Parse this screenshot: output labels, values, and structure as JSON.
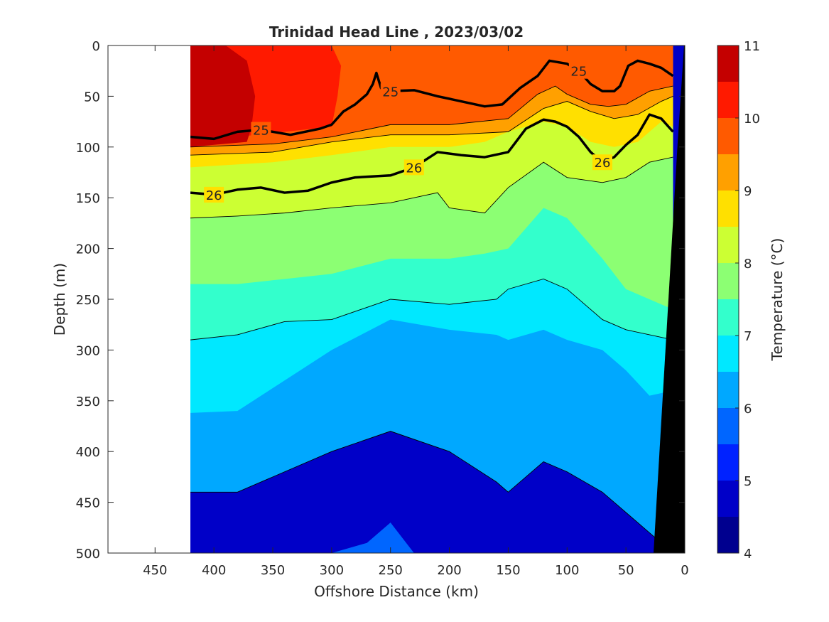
{
  "chart_data": {
    "type": "heatmap",
    "title": "Trinidad Head Line , 2023/03/02",
    "xlabel": "Offshore Distance (km)",
    "ylabel": "Depth (m)",
    "xlim": [
      490,
      0
    ],
    "ylim": [
      0,
      500
    ],
    "x_reversed": true,
    "y_reversed": true,
    "x_ticks": [
      450,
      400,
      350,
      300,
      250,
      200,
      150,
      100,
      50,
      0
    ],
    "y_ticks": [
      0,
      50,
      100,
      150,
      200,
      250,
      300,
      350,
      400,
      450,
      500
    ],
    "data_extent_km": [
      420,
      0
    ],
    "colorbar": {
      "label": "Temperature (°C)",
      "ticks": [
        4,
        5,
        6,
        7,
        8,
        9,
        10,
        11
      ],
      "levels": [
        4,
        4.5,
        5,
        5.5,
        6,
        6.5,
        7,
        7.5,
        8,
        8.5,
        9,
        9.5,
        10,
        10.5,
        11
      ],
      "colors": [
        "#00008f",
        "#0000c8",
        "#0022ff",
        "#0066ff",
        "#00a8ff",
        "#00e8ff",
        "#33ffcc",
        "#8cff73",
        "#ccff33",
        "#ffe000",
        "#ffa000",
        "#ff5a00",
        "#ff1a00",
        "#c40000"
      ]
    },
    "temperature_isotherms": [
      {
        "level": 10.5,
        "x": [
          420,
          390,
          372,
          365,
          368,
          372,
          420
        ],
        "y": [
          0,
          0,
          15,
          50,
          80,
          95,
          100
        ]
      },
      {
        "level": 10.0,
        "x": [
          420,
          300,
          292,
          295,
          300,
          420
        ],
        "y": [
          0,
          0,
          20,
          50,
          80,
          95
        ]
      },
      {
        "level": 9.5,
        "x": [
          420,
          350,
          300,
          250,
          200,
          150,
          125,
          110,
          100,
          80,
          65,
          50,
          30,
          10
        ],
        "y": [
          100,
          97,
          90,
          78,
          78,
          72,
          48,
          40,
          48,
          58,
          60,
          58,
          45,
          40
        ]
      },
      {
        "level": 9.0,
        "x": [
          420,
          350,
          300,
          250,
          200,
          150,
          120,
          100,
          80,
          60,
          40,
          20,
          10
        ],
        "y": [
          108,
          105,
          95,
          88,
          88,
          85,
          62,
          55,
          65,
          72,
          68,
          55,
          50
        ]
      },
      {
        "level": 8.5,
        "x": [
          420,
          350,
          300,
          250,
          200,
          170,
          150,
          120,
          100,
          80,
          60,
          40,
          20,
          10
        ],
        "y": [
          120,
          115,
          108,
          100,
          100,
          95,
          85,
          75,
          80,
          95,
          100,
          95,
          75,
          80
        ]
      },
      {
        "level": 8.0,
        "x": [
          420,
          380,
          340,
          300,
          250,
          210,
          200,
          170,
          150,
          120,
          100,
          70,
          50,
          30,
          10
        ],
        "y": [
          170,
          168,
          165,
          160,
          155,
          145,
          160,
          165,
          140,
          115,
          130,
          135,
          130,
          115,
          110
        ]
      },
      {
        "level": 7.5,
        "x": [
          420,
          380,
          340,
          300,
          250,
          200,
          170,
          150,
          120,
          100,
          70,
          50,
          30,
          10
        ],
        "y": [
          235,
          235,
          230,
          225,
          210,
          210,
          205,
          200,
          160,
          170,
          210,
          240,
          250,
          260
        ]
      },
      {
        "level": 7.0,
        "x": [
          420,
          380,
          340,
          300,
          250,
          200,
          160,
          150,
          120,
          100,
          70,
          50,
          30,
          10
        ],
        "y": [
          290,
          285,
          272,
          270,
          250,
          255,
          250,
          240,
          230,
          240,
          270,
          280,
          285,
          290
        ]
      },
      {
        "level": 6.5,
        "x": [
          420,
          380,
          340,
          300,
          250,
          200,
          160,
          150,
          120,
          100,
          70,
          50,
          30,
          10
        ],
        "y": [
          362,
          360,
          330,
          300,
          270,
          280,
          285,
          290,
          280,
          290,
          300,
          320,
          345,
          340
        ]
      },
      {
        "level": 6.0,
        "x": [
          420,
          380,
          340,
          300,
          250,
          200,
          160,
          150,
          120,
          100,
          70,
          50,
          30,
          10
        ],
        "y": [
          440,
          440,
          420,
          400,
          380,
          400,
          430,
          440,
          410,
          420,
          440,
          460,
          480,
          500
        ]
      },
      {
        "level": 5.5,
        "x": [
          300,
          270,
          250,
          230
        ],
        "y": [
          500,
          490,
          470,
          500
        ]
      }
    ],
    "density_contours": [
      {
        "label": "25",
        "x": [
          420,
          400,
          380,
          360,
          335,
          310,
          300,
          290,
          280,
          270,
          265,
          262,
          258,
          250,
          230,
          210,
          190,
          170,
          155,
          140,
          125,
          115,
          100,
          90,
          80,
          70,
          60,
          55,
          48,
          40,
          30,
          20,
          10
        ],
        "y": [
          90,
          92,
          85,
          83,
          88,
          82,
          78,
          65,
          58,
          48,
          38,
          27,
          42,
          45,
          44,
          50,
          55,
          60,
          58,
          42,
          30,
          15,
          18,
          25,
          38,
          45,
          45,
          40,
          20,
          15,
          18,
          22,
          30
        ]
      },
      {
        "label": "26",
        "x": [
          420,
          400,
          380,
          360,
          340,
          320,
          300,
          280,
          250,
          230,
          210,
          190,
          170,
          150,
          135,
          120,
          110,
          100,
          90,
          80,
          70,
          60,
          50,
          40,
          30,
          20,
          10
        ],
        "y": [
          145,
          147,
          142,
          140,
          145,
          143,
          135,
          130,
          128,
          120,
          105,
          108,
          110,
          105,
          82,
          73,
          75,
          80,
          90,
          105,
          115,
          110,
          98,
          88,
          68,
          72,
          85
        ]
      }
    ]
  }
}
